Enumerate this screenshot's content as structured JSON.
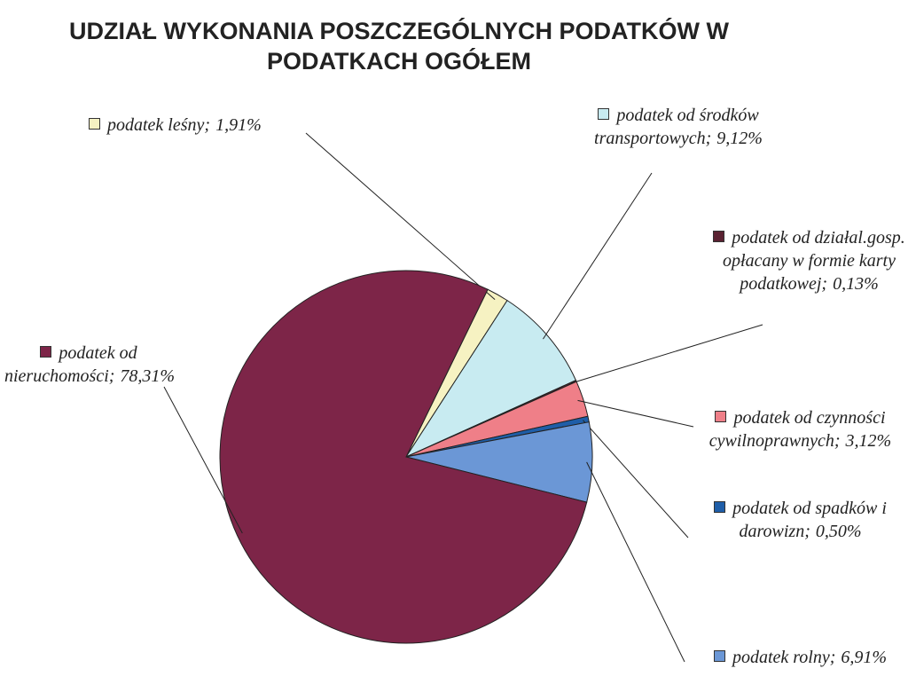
{
  "chart_data": {
    "type": "pie",
    "title": "UDZIAŁ WYKONANIA POSZCZEGÓLNYCH PODATKÓW W PODATKACH OGÓŁEM",
    "categories": [
      "podatek leśny;",
      "podatek od środków transportowych;",
      "podatek od działal.gosp. opłacany w formie karty podatkowej;",
      "podatek od czynności cywilnoprawnych;",
      "podatek od spadków i darowizn;",
      "podatek rolny;",
      "podatek od nieruchomości;"
    ],
    "values": [
      1.91,
      9.12,
      0.13,
      3.12,
      0.5,
      6.91,
      78.31
    ],
    "value_labels": [
      "1,91%",
      "9,12%",
      "0,13%",
      "3,12%",
      "0,50%",
      "6,91%",
      "78,31%"
    ],
    "colors": [
      "#f6f2c2",
      "#c8ebf1",
      "#5a2232",
      "#ef7f88",
      "#1f5ea8",
      "#6b97d6",
      "#7d2548"
    ]
  }
}
